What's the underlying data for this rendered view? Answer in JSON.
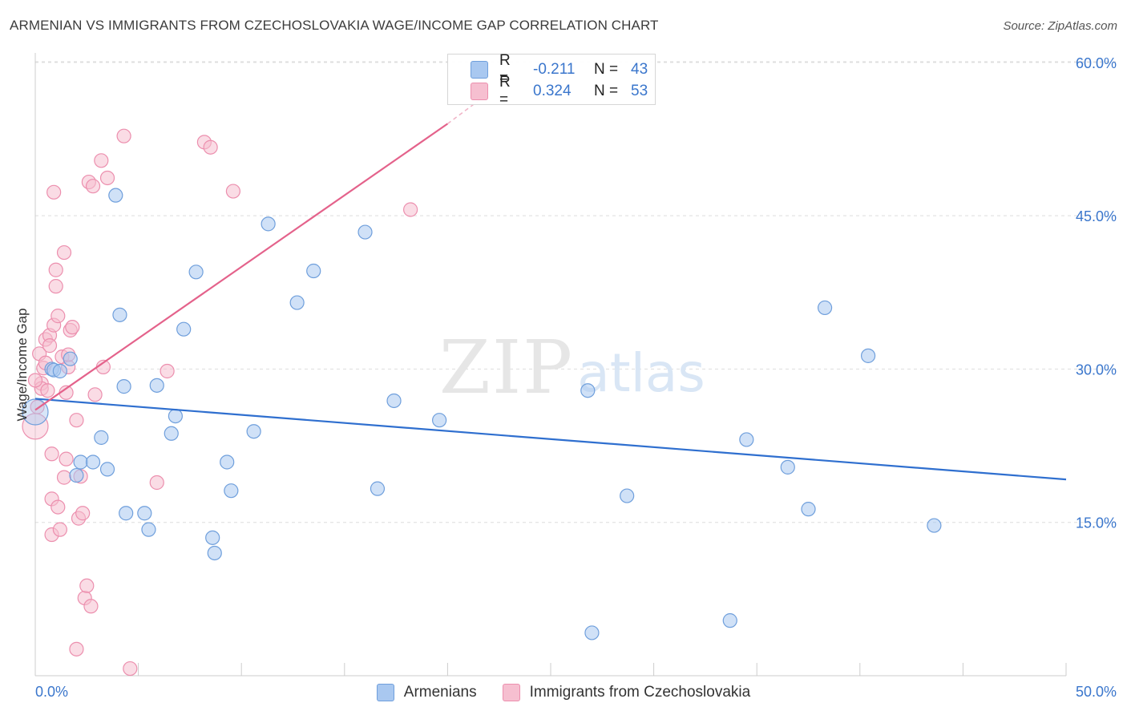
{
  "title": "ARMENIAN VS IMMIGRANTS FROM CZECHOSLOVAKIA WAGE/INCOME GAP CORRELATION CHART",
  "source": "Source: ZipAtlas.com",
  "watermark": {
    "zip": "ZIP",
    "atlas": "atlas"
  },
  "colors": {
    "blue_fill": "#a9c8f0",
    "blue_stroke": "#6f9fdc",
    "blue_line": "#2f6fcf",
    "pink_fill": "#f6bfd0",
    "pink_stroke": "#ec8fae",
    "pink_line": "#e4628b",
    "tick_text": "#3a76cc",
    "grid": "#dddddd"
  },
  "legend_top": {
    "rows": [
      {
        "r_label": "R =",
        "r_value": "-0.211",
        "n_label": "N =",
        "n_value": "43"
      },
      {
        "r_label": "R =",
        "r_value": "0.324",
        "n_label": "N =",
        "n_value": "53"
      }
    ]
  },
  "legend_bottom": [
    "Armenians",
    "Immigrants from Czechoslovakia"
  ],
  "chart_data": {
    "type": "scatter",
    "title": "ARMENIAN VS IMMIGRANTS FROM CZECHOSLOVAKIA WAGE/INCOME GAP CORRELATION CHART",
    "xlabel": "",
    "ylabel": "Wage/Income Gap",
    "xlim": [
      0,
      50
    ],
    "ylim": [
      0,
      61
    ],
    "x_tick_labels": [
      "0.0%",
      "50.0%"
    ],
    "y_ticks": [
      15,
      30,
      45,
      60
    ],
    "y_tick_labels": [
      "15.0%",
      "30.0%",
      "45.0%",
      "60.0%"
    ],
    "grid": true,
    "series": [
      {
        "name": "Armenians",
        "color": "blue",
        "trend": {
          "x": [
            0,
            50
          ],
          "y": [
            27.1,
            19.2
          ]
        },
        "points": [
          [
            0.0,
            25.8
          ],
          [
            0.8,
            30.0
          ],
          [
            0.9,
            29.9
          ],
          [
            1.2,
            29.8
          ],
          [
            1.7,
            31.0
          ],
          [
            2.0,
            19.6
          ],
          [
            2.2,
            20.9
          ],
          [
            2.8,
            20.9
          ],
          [
            3.2,
            23.3
          ],
          [
            3.5,
            20.2
          ],
          [
            3.9,
            47.0
          ],
          [
            4.1,
            35.3
          ],
          [
            4.3,
            28.3
          ],
          [
            4.4,
            15.9
          ],
          [
            5.3,
            15.9
          ],
          [
            5.5,
            14.3
          ],
          [
            5.9,
            28.4
          ],
          [
            6.6,
            23.7
          ],
          [
            6.8,
            25.4
          ],
          [
            7.2,
            33.9
          ],
          [
            7.8,
            39.5
          ],
          [
            8.6,
            13.5
          ],
          [
            8.7,
            12.0
          ],
          [
            9.3,
            20.9
          ],
          [
            9.5,
            18.1
          ],
          [
            10.6,
            23.9
          ],
          [
            11.3,
            44.2
          ],
          [
            12.7,
            36.5
          ],
          [
            13.5,
            39.6
          ],
          [
            16.0,
            43.4
          ],
          [
            16.6,
            18.3
          ],
          [
            17.4,
            26.9
          ],
          [
            19.6,
            25.0
          ],
          [
            26.8,
            27.9
          ],
          [
            27.0,
            4.2
          ],
          [
            28.7,
            17.6
          ],
          [
            33.7,
            5.4
          ],
          [
            34.5,
            23.1
          ],
          [
            36.5,
            20.4
          ],
          [
            37.5,
            16.3
          ],
          [
            38.3,
            36.0
          ],
          [
            40.4,
            31.3
          ],
          [
            43.6,
            14.7
          ]
        ]
      },
      {
        "name": "Immigrants from Czechoslovakia",
        "color": "pink",
        "trend": {
          "x": [
            0,
            20
          ],
          "y": [
            26.0,
            54.0
          ]
        },
        "trend_dashed": {
          "x": [
            20,
            22
          ],
          "y": [
            54.0,
            57.0
          ]
        },
        "points": [
          [
            0.0,
            24.4
          ],
          [
            0.1,
            26.3
          ],
          [
            0.2,
            31.5
          ],
          [
            0.3,
            28.6
          ],
          [
            0.3,
            28.1
          ],
          [
            0.4,
            30.1
          ],
          [
            0.5,
            32.9
          ],
          [
            0.5,
            30.6
          ],
          [
            0.6,
            27.9
          ],
          [
            0.7,
            33.3
          ],
          [
            0.7,
            32.3
          ],
          [
            0.8,
            21.7
          ],
          [
            0.8,
            17.3
          ],
          [
            0.8,
            13.8
          ],
          [
            0.9,
            47.3
          ],
          [
            0.9,
            34.3
          ],
          [
            1.0,
            38.1
          ],
          [
            1.0,
            39.7
          ],
          [
            1.1,
            16.5
          ],
          [
            1.1,
            35.2
          ],
          [
            1.2,
            14.3
          ],
          [
            1.3,
            31.2
          ],
          [
            1.4,
            19.4
          ],
          [
            1.4,
            41.4
          ],
          [
            1.5,
            27.7
          ],
          [
            1.5,
            21.2
          ],
          [
            1.6,
            30.2
          ],
          [
            1.6,
            31.4
          ],
          [
            1.7,
            33.8
          ],
          [
            1.8,
            34.1
          ],
          [
            2.0,
            25.0
          ],
          [
            2.0,
            2.6
          ],
          [
            2.1,
            15.4
          ],
          [
            2.2,
            19.5
          ],
          [
            2.3,
            15.9
          ],
          [
            2.4,
            7.6
          ],
          [
            2.5,
            8.8
          ],
          [
            2.6,
            48.3
          ],
          [
            2.7,
            6.8
          ],
          [
            2.8,
            47.9
          ],
          [
            2.9,
            27.5
          ],
          [
            3.2,
            50.4
          ],
          [
            3.3,
            30.2
          ],
          [
            3.5,
            48.7
          ],
          [
            4.3,
            52.8
          ],
          [
            4.6,
            0.7
          ],
          [
            5.9,
            18.9
          ],
          [
            6.4,
            29.8
          ],
          [
            8.2,
            52.2
          ],
          [
            8.5,
            51.7
          ],
          [
            9.6,
            47.4
          ],
          [
            18.2,
            45.6
          ],
          [
            0.0,
            28.9
          ]
        ]
      }
    ]
  }
}
